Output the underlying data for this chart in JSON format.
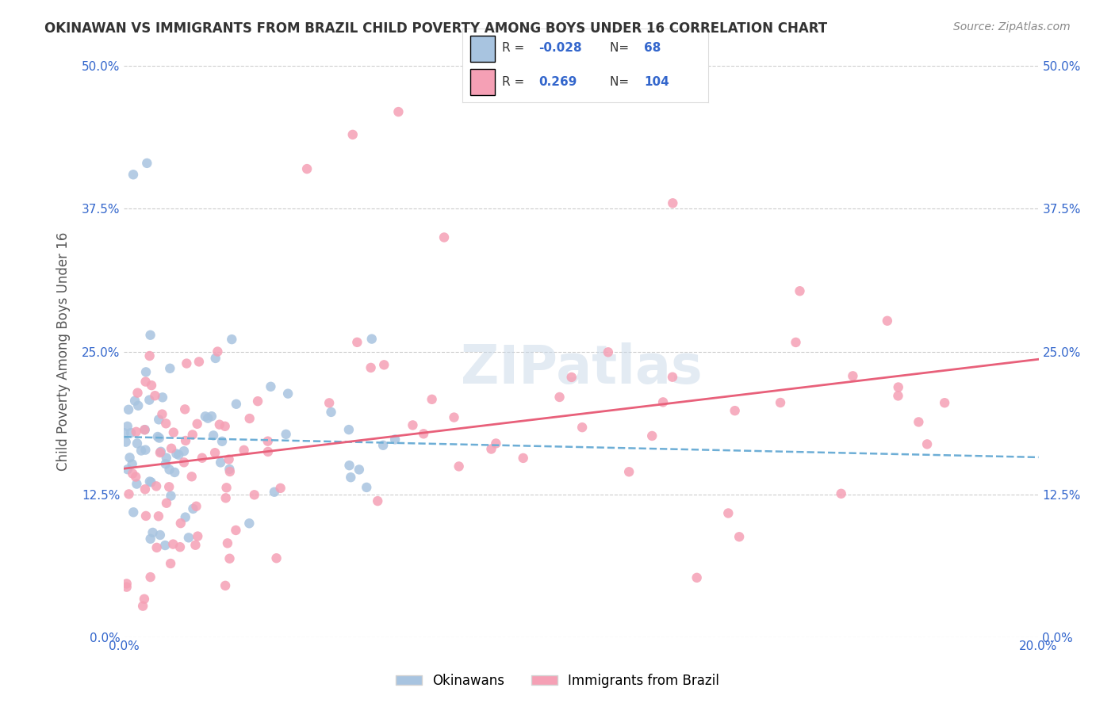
{
  "title": "OKINAWAN VS IMMIGRANTS FROM BRAZIL CHILD POVERTY AMONG BOYS UNDER 16 CORRELATION CHART",
  "source": "Source: ZipAtlas.com",
  "ylabel": "Child Poverty Among Boys Under 16",
  "xlim": [
    0.0,
    0.2
  ],
  "ylim": [
    0.0,
    0.5
  ],
  "xticks": [
    0.0,
    0.05,
    0.1,
    0.15,
    0.2
  ],
  "xtick_labels": [
    "0.0%",
    "",
    "",
    "",
    "20.0%"
  ],
  "ytick_labels": [
    "0.0%",
    "12.5%",
    "25.0%",
    "37.5%",
    "50.0%"
  ],
  "yticks": [
    0.0,
    0.125,
    0.25,
    0.375,
    0.5
  ],
  "color_blue": "#a8c4e0",
  "color_pink": "#f5a0b5",
  "line_blue": "#6daed6",
  "line_pink": "#e8607a",
  "R_blue": -0.028,
  "N_blue": 68,
  "R_pink": 0.269,
  "N_pink": 104,
  "legend_label_blue": "Okinawans",
  "legend_label_pink": "Immigrants from Brazil",
  "watermark": "ZIPatlas"
}
